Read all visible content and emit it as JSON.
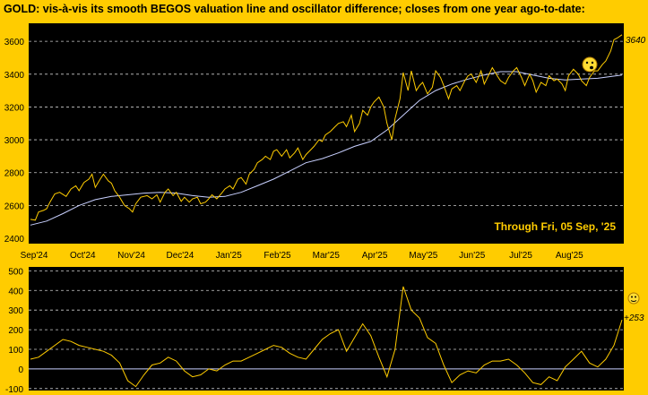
{
  "chart_data": [
    {
      "type": "line",
      "title": "GOLD:  vis-à-vis its smooth BEGOS valuation line and oscillator difference; closes from one year ago-to-date:",
      "annotation": "Through Fri, 05 Sep, '25",
      "last_value_label": "3640",
      "x_tick_labels": [
        "Sep'24",
        "Oct'24",
        "Nov'24",
        "Dec'24",
        "Jan'25",
        "Feb'25",
        "Mar'25",
        "Apr'25",
        "May'25",
        "Jun'25",
        "Jul'25",
        "Aug'25"
      ],
      "y_ticks": [
        2400,
        2600,
        2800,
        3000,
        3200,
        3400,
        3600
      ],
      "ylim": [
        2400,
        3710
      ],
      "grid": true,
      "colors": {
        "background": "#000000",
        "frame": "#ffcc00",
        "price": "#ffcc00",
        "valuation": "#c8d0ff",
        "grid": "#cccccc",
        "text": "#ffcc00"
      },
      "series": [
        {
          "role": "price",
          "x": [
            0,
            3,
            5,
            8,
            10,
            12,
            15,
            18,
            22,
            25,
            28,
            30,
            33,
            36,
            38,
            40,
            43,
            45,
            48,
            50,
            52,
            55,
            58,
            61,
            63,
            65,
            68,
            72,
            75,
            78,
            80,
            83,
            85,
            88,
            90,
            93,
            95,
            98,
            100,
            103,
            105,
            108,
            110,
            112,
            115,
            118,
            120,
            123,
            125,
            128,
            130,
            133,
            135,
            138,
            140,
            143,
            145,
            148,
            150,
            152,
            155,
            158,
            160,
            163,
            165,
            168,
            170,
            173,
            175,
            178,
            180,
            182,
            185,
            188,
            190,
            193,
            195,
            198,
            200,
            203,
            205,
            208,
            210,
            212,
            215,
            218,
            220,
            223,
            225,
            228,
            230,
            233,
            235,
            238,
            240,
            242,
            245,
            248,
            250,
            253,
            255,
            258,
            260,
            263,
            265,
            268,
            270,
            272,
            275,
            278,
            280,
            282,
            285,
            288,
            290,
            293,
            295,
            298,
            300,
            303,
            305,
            308,
            310,
            312,
            315,
            318,
            320,
            323,
            325,
            328,
            330,
            332,
            335,
            338,
            340,
            343,
            345,
            348,
            350,
            353,
            355,
            358,
            360,
            362,
            365
          ],
          "values": [
            2515,
            2510,
            2560,
            2570,
            2580,
            2620,
            2670,
            2680,
            2655,
            2700,
            2720,
            2690,
            2740,
            2760,
            2790,
            2710,
            2760,
            2790,
            2750,
            2735,
            2690,
            2650,
            2600,
            2580,
            2560,
            2610,
            2650,
            2660,
            2640,
            2665,
            2620,
            2680,
            2700,
            2660,
            2680,
            2625,
            2650,
            2620,
            2640,
            2650,
            2610,
            2620,
            2640,
            2665,
            2640,
            2675,
            2700,
            2720,
            2700,
            2760,
            2770,
            2730,
            2790,
            2820,
            2860,
            2880,
            2900,
            2880,
            2930,
            2940,
            2900,
            2940,
            2890,
            2920,
            2950,
            2880,
            2910,
            2940,
            2960,
            3000,
            2990,
            3030,
            3050,
            3080,
            3100,
            3110,
            3080,
            3150,
            3050,
            3100,
            3180,
            3150,
            3200,
            3230,
            3260,
            3200,
            3100,
            3000,
            3130,
            3250,
            3410,
            3300,
            3420,
            3300,
            3330,
            3350,
            3280,
            3320,
            3420,
            3380,
            3330,
            3250,
            3310,
            3330,
            3300,
            3360,
            3390,
            3400,
            3350,
            3420,
            3340,
            3380,
            3440,
            3390,
            3360,
            3340,
            3380,
            3420,
            3440,
            3380,
            3330,
            3400,
            3360,
            3290,
            3350,
            3330,
            3390,
            3360,
            3370,
            3340,
            3300,
            3390,
            3430,
            3400,
            3360,
            3330,
            3380,
            3420,
            3420,
            3460,
            3480,
            3540,
            3610,
            3620,
            3640
          ]
        },
        {
          "role": "valuation",
          "x": [
            0,
            10,
            20,
            30,
            40,
            50,
            60,
            70,
            80,
            90,
            100,
            110,
            120,
            130,
            140,
            150,
            160,
            170,
            180,
            190,
            200,
            210,
            220,
            230,
            240,
            250,
            260,
            270,
            280,
            290,
            300,
            310,
            320,
            330,
            340,
            350,
            365
          ],
          "values": [
            2480,
            2505,
            2550,
            2600,
            2635,
            2655,
            2665,
            2675,
            2680,
            2675,
            2660,
            2650,
            2655,
            2680,
            2720,
            2760,
            2810,
            2860,
            2885,
            2920,
            2960,
            2990,
            3060,
            3150,
            3240,
            3300,
            3340,
            3370,
            3395,
            3415,
            3415,
            3395,
            3375,
            3365,
            3370,
            3375,
            3395
          ]
        }
      ]
    },
    {
      "type": "line",
      "last_value_label": "+253",
      "y_ticks": [
        -100,
        0,
        100,
        200,
        300,
        400,
        500
      ],
      "ylim": [
        -110,
        520
      ],
      "grid": true,
      "colors": {
        "background": "#000000",
        "oscillator": "#ffcc00",
        "zero_line": "#c8d0ff",
        "grid": "#cccccc",
        "text": "#000000"
      },
      "series": [
        {
          "role": "oscillator",
          "x": [
            0,
            5,
            10,
            15,
            20,
            25,
            30,
            35,
            40,
            45,
            50,
            55,
            60,
            65,
            70,
            75,
            80,
            85,
            90,
            95,
            100,
            105,
            110,
            115,
            120,
            125,
            130,
            135,
            140,
            145,
            150,
            155,
            160,
            165,
            170,
            175,
            180,
            185,
            190,
            195,
            200,
            205,
            210,
            215,
            220,
            225,
            230,
            235,
            240,
            245,
            250,
            255,
            260,
            265,
            270,
            275,
            280,
            285,
            290,
            295,
            300,
            305,
            310,
            315,
            320,
            325,
            330,
            335,
            340,
            345,
            350,
            355,
            360,
            365
          ],
          "values": [
            50,
            60,
            90,
            120,
            150,
            140,
            120,
            110,
            100,
            90,
            70,
            30,
            -60,
            -90,
            -30,
            20,
            30,
            60,
            40,
            -10,
            -40,
            -30,
            0,
            -10,
            20,
            40,
            40,
            60,
            80,
            100,
            120,
            110,
            80,
            60,
            50,
            100,
            150,
            180,
            200,
            90,
            160,
            230,
            170,
            60,
            -40,
            100,
            420,
            300,
            260,
            160,
            130,
            20,
            -70,
            -30,
            -10,
            -20,
            20,
            40,
            40,
            50,
            20,
            -20,
            -70,
            -80,
            -40,
            -60,
            10,
            50,
            90,
            30,
            10,
            50,
            120,
            250
          ]
        }
      ]
    }
  ]
}
